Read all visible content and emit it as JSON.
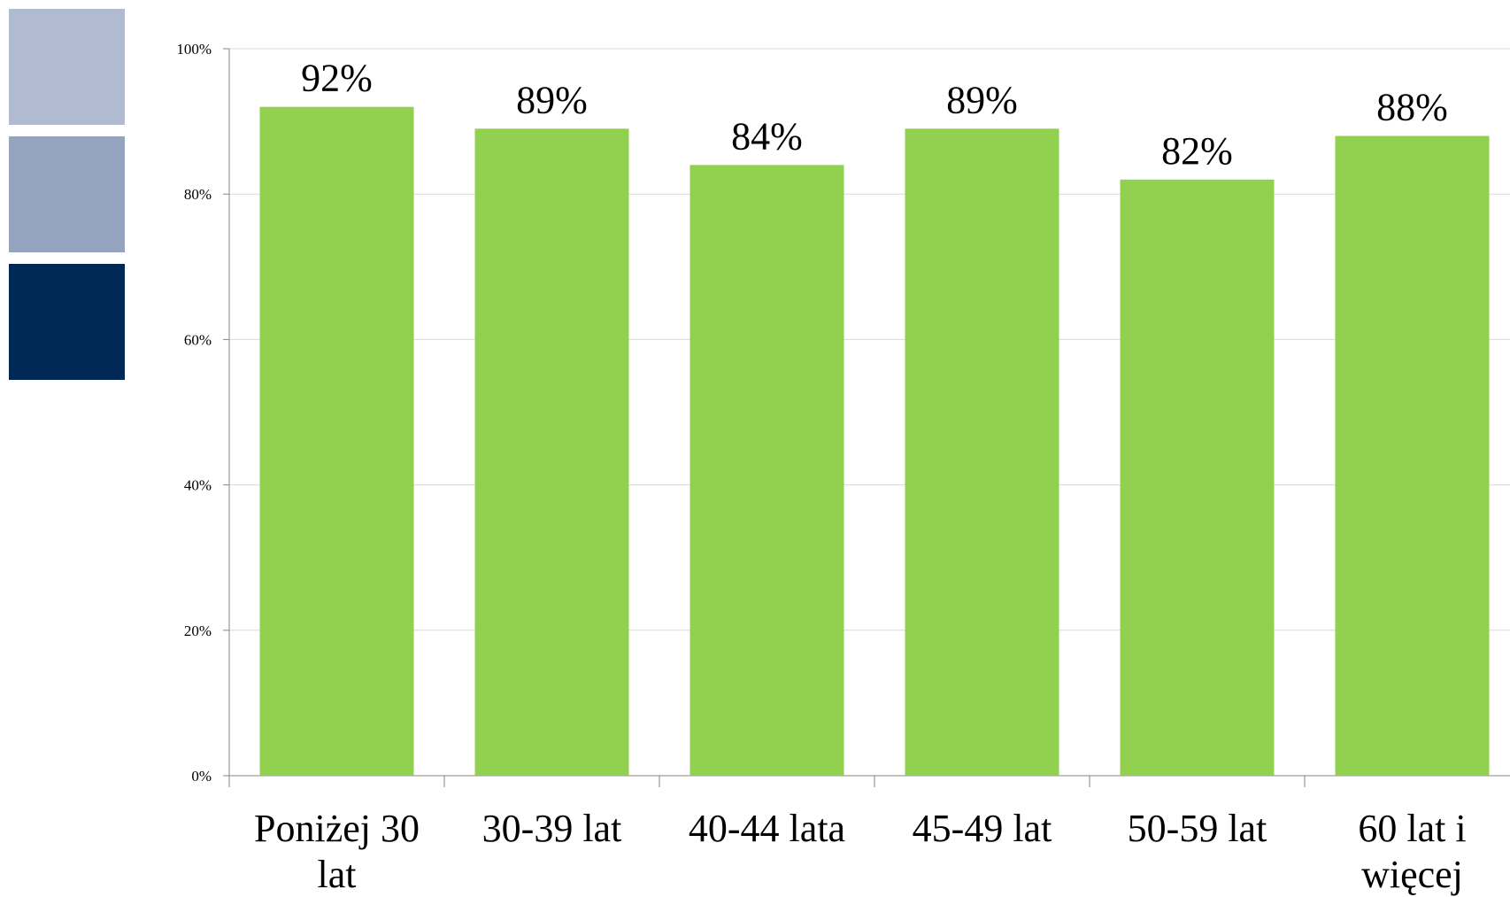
{
  "decoration": {
    "colors": [
      "#B0BAD1",
      "#96A3BF",
      "#002855"
    ]
  },
  "chart_data": {
    "type": "bar",
    "categories": [
      [
        "Poniżej 30",
        "lat"
      ],
      [
        "30-39 lat"
      ],
      [
        "40-44 lata"
      ],
      [
        "45-49 lat"
      ],
      [
        "50-59 lat"
      ],
      [
        "60 lat i",
        "więcej"
      ]
    ],
    "values": [
      92,
      89,
      84,
      89,
      82,
      88
    ],
    "data_labels": [
      "92%",
      "89%",
      "84%",
      "89%",
      "82%",
      "88%"
    ],
    "ylim": [
      0,
      100
    ],
    "yticks": [
      0,
      20,
      40,
      60,
      80,
      100
    ],
    "ytick_labels": [
      "0%",
      "20%",
      "40%",
      "60%",
      "80%",
      "100%"
    ],
    "title": "",
    "xlabel": "",
    "ylabel": "",
    "grid": true,
    "legend": "none",
    "colors": {
      "bar": "#92D050",
      "grid": "#D9D9D9",
      "axis": "#868686"
    }
  }
}
